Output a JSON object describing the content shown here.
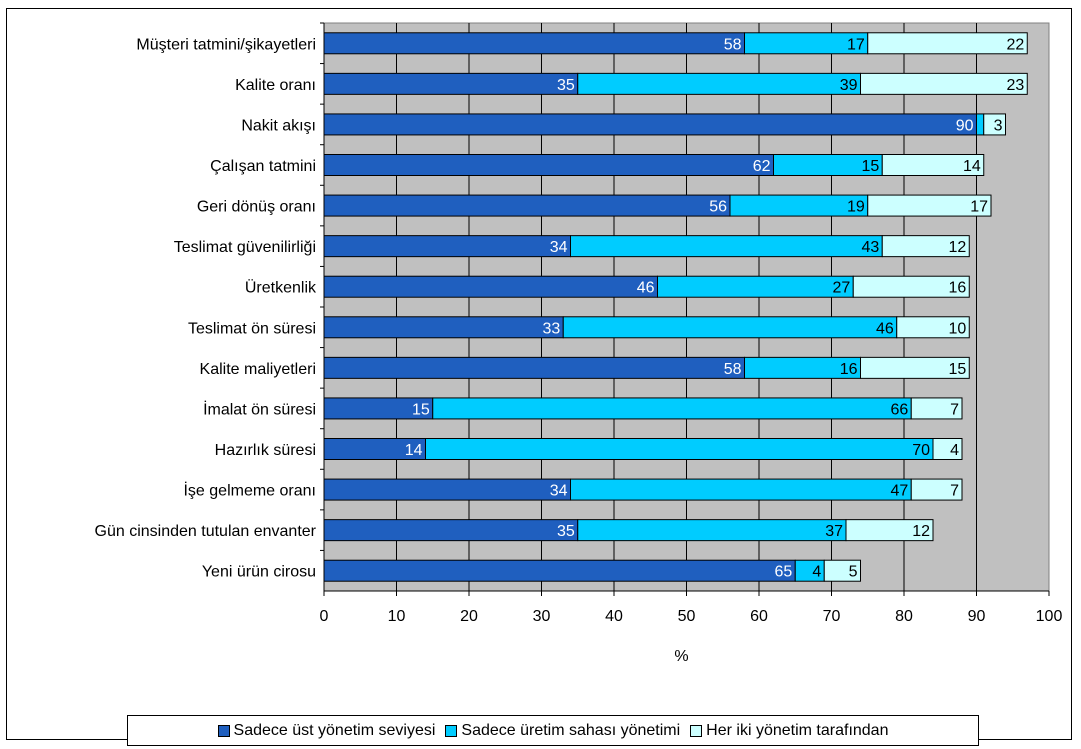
{
  "chart_data": {
    "type": "bar",
    "orientation": "horizontal",
    "stacked": true,
    "categories": [
      "Müşteri tatmini/şikayetleri",
      "Kalite oranı",
      "Nakit akışı",
      "Çalışan tatmini",
      "Geri dönüş oranı",
      "Teslimat güvenilirliği",
      "Üretkenlik",
      "Teslimat ön süresi",
      "Kalite maliyetleri",
      "İmalat ön süresi",
      "Hazırlık süresi",
      "İşe gelmeme oranı",
      "Gün cinsinden tutulan envanter",
      "Yeni ürün cirosu"
    ],
    "series": [
      {
        "name": "Sadece üst yönetim seviyesi",
        "color": "#1F5FBF",
        "values": [
          58,
          35,
          90,
          62,
          56,
          34,
          46,
          33,
          58,
          15,
          14,
          34,
          35,
          65
        ]
      },
      {
        "name": "Sadece üretim sahası yönetimi",
        "color": "#00CCFF",
        "values": [
          17,
          39,
          1,
          15,
          19,
          43,
          27,
          46,
          16,
          66,
          70,
          47,
          37,
          4
        ]
      },
      {
        "name": "Her iki yönetim tarafından",
        "color": "#CCFFFF",
        "values": [
          22,
          23,
          3,
          14,
          17,
          12,
          16,
          10,
          15,
          7,
          4,
          7,
          12,
          5
        ]
      }
    ],
    "data_labels": [
      [
        "58",
        "17",
        "22"
      ],
      [
        "35",
        "39",
        "23"
      ],
      [
        "90",
        "",
        "3"
      ],
      [
        "62",
        "15",
        "14"
      ],
      [
        "56",
        "19",
        "17"
      ],
      [
        "34",
        "43",
        "12"
      ],
      [
        "46",
        "27",
        "16"
      ],
      [
        "33",
        "46",
        "10"
      ],
      [
        "58",
        "16",
        "15"
      ],
      [
        "15",
        "66",
        "7"
      ],
      [
        "14",
        "70",
        "4"
      ],
      [
        "34",
        "47",
        "7"
      ],
      [
        "35",
        "37",
        "12"
      ],
      [
        "65",
        "4",
        "5"
      ]
    ],
    "xlabel": "%",
    "xlim": [
      0,
      100
    ],
    "xticks": [
      "0",
      "10",
      "20",
      "30",
      "40",
      "50",
      "60",
      "70",
      "80",
      "90",
      "100"
    ],
    "grid": true,
    "plot_background": "#C0C0C0",
    "legend_position": "bottom"
  }
}
